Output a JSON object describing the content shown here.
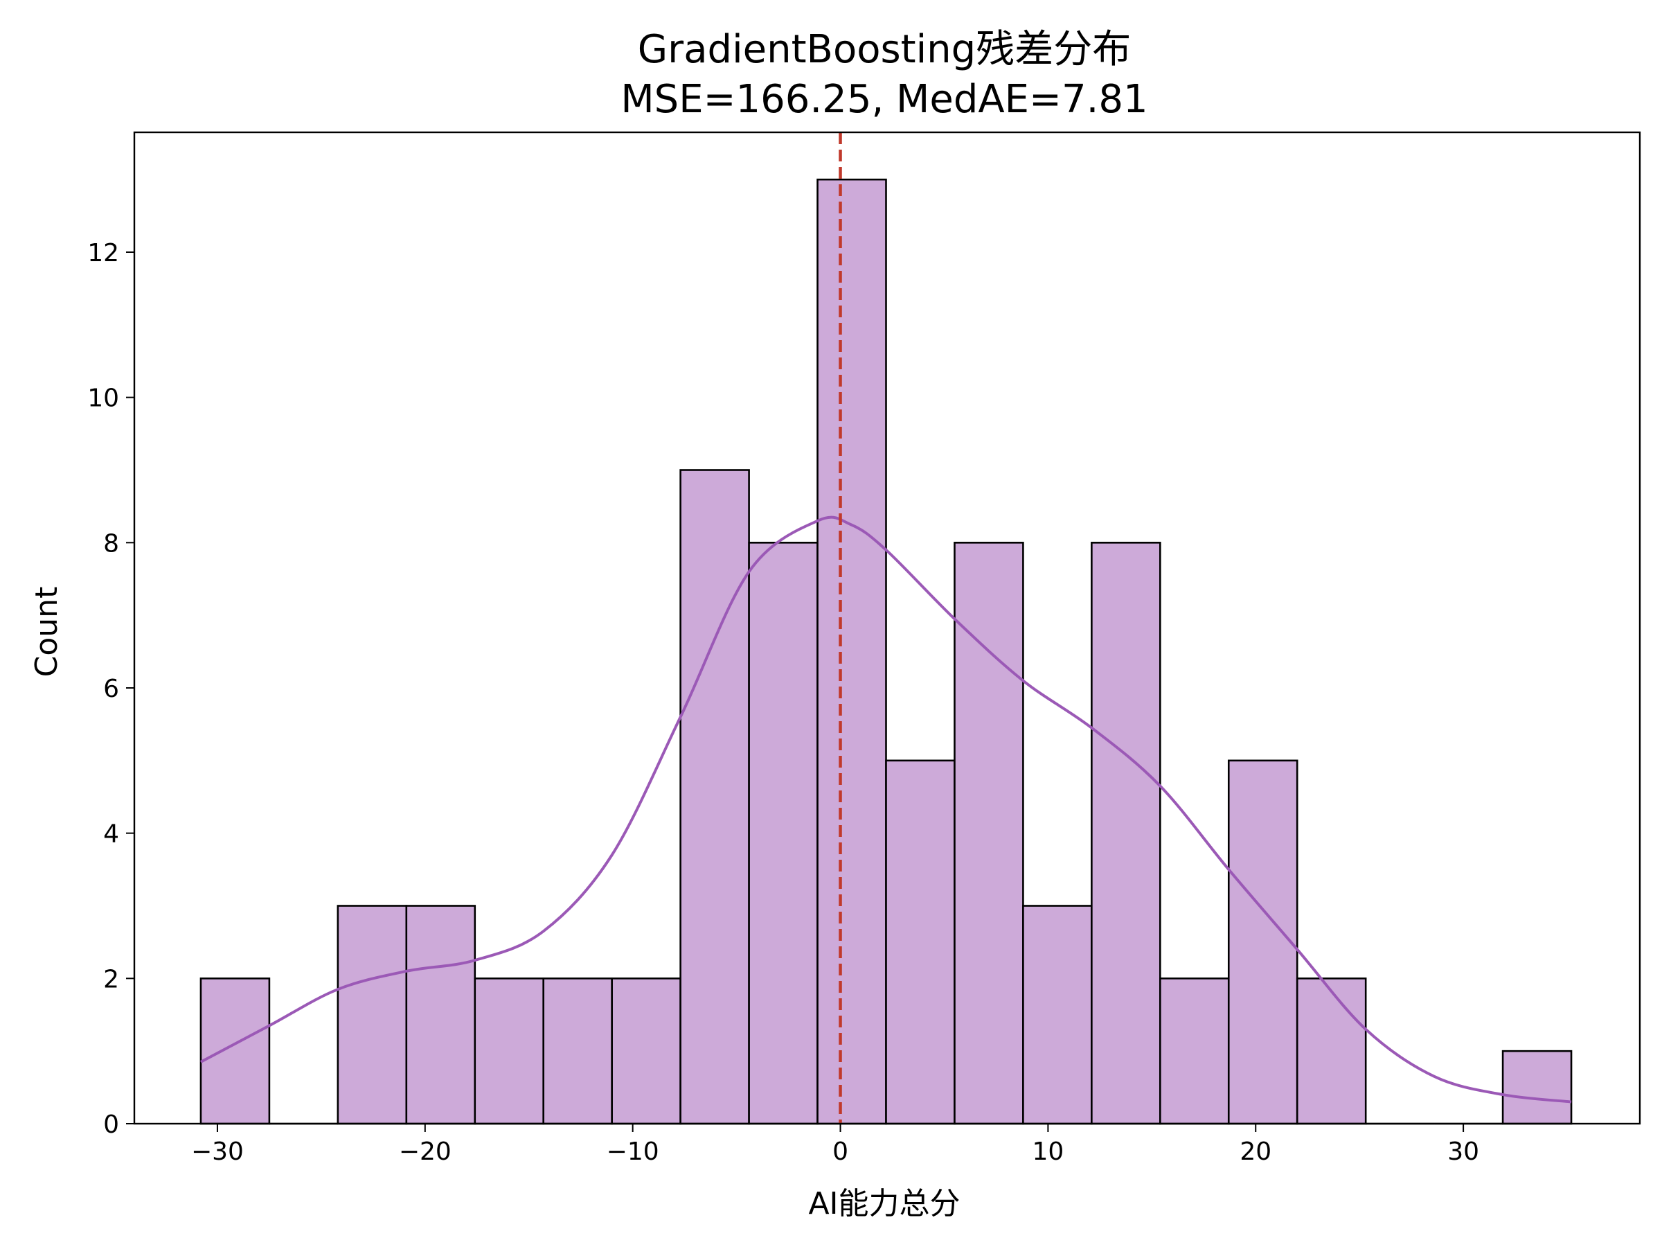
{
  "chart_data": {
    "type": "histogram",
    "title": "GradientBoosting残差分布",
    "subtitle": "MSE=166.25, MedAE=7.81",
    "xlabel": "AI能力总分",
    "ylabel": "Count",
    "xlim": [
      -34.0,
      38.5
    ],
    "ylim": [
      0,
      13.65
    ],
    "x_ticks": [
      -30,
      -20,
      -10,
      0,
      10,
      20,
      30
    ],
    "x_tick_labels": [
      "−30",
      "−20",
      "−10",
      "0",
      "10",
      "20",
      "30"
    ],
    "y_ticks": [
      0,
      2,
      4,
      6,
      8,
      10,
      12
    ],
    "y_tick_labels": [
      "0",
      "2",
      "4",
      "6",
      "8",
      "10",
      "12"
    ],
    "bin_edges": [
      -30.8,
      -27.5,
      -24.2,
      -20.9,
      -17.6,
      -14.3,
      -11.0,
      -7.7,
      -4.4,
      -1.1,
      2.2,
      5.5,
      8.8,
      12.1,
      15.4,
      18.7,
      22.0,
      25.3,
      28.6,
      31.9,
      35.2
    ],
    "counts": [
      2,
      0,
      3,
      3,
      2,
      2,
      2,
      9,
      8,
      13,
      5,
      8,
      3,
      8,
      2,
      5,
      2,
      0,
      0,
      1
    ],
    "bar_color": "#cdaad9",
    "bar_edge_color": "#000000",
    "kde": {
      "color": "#9b59b6",
      "x": [
        -30.8,
        -27.5,
        -24.2,
        -20.9,
        -17.6,
        -14.3,
        -11.0,
        -7.7,
        -4.4,
        -1.1,
        0.5,
        2.2,
        5.5,
        8.8,
        12.1,
        15.4,
        18.7,
        22.0,
        25.3,
        28.6,
        31.9,
        35.2
      ],
      "y": [
        0.85,
        1.35,
        1.85,
        2.1,
        2.25,
        2.65,
        3.7,
        5.6,
        7.6,
        8.3,
        8.25,
        7.9,
        6.95,
        6.1,
        5.45,
        4.65,
        3.5,
        2.4,
        1.3,
        0.65,
        0.4,
        0.3
      ]
    },
    "reference_line": {
      "x": 0,
      "color": "#c0392b",
      "style": "dashed"
    },
    "grid": false,
    "legend": "none"
  }
}
